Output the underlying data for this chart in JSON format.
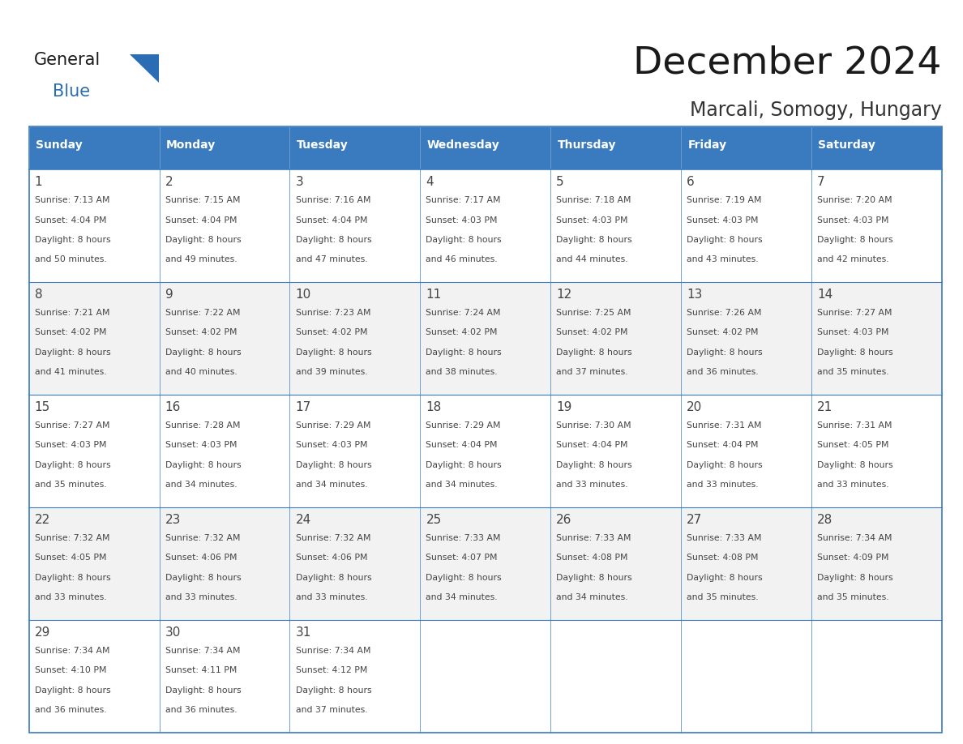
{
  "title": "December 2024",
  "subtitle": "Marcali, Somogy, Hungary",
  "days_of_week": [
    "Sunday",
    "Monday",
    "Tuesday",
    "Wednesday",
    "Thursday",
    "Friday",
    "Saturday"
  ],
  "header_bg": "#3a7abf",
  "header_text": "#ffffff",
  "row_bg_light": "#f2f2f2",
  "row_bg_white": "#ffffff",
  "cell_text": "#444444",
  "border_color": "#3a7abf",
  "title_color": "#1a1a1a",
  "subtitle_color": "#333333",
  "logo_text_color": "#1a1a1a",
  "logo_blue_color": "#2a6db5",
  "logo_triangle_color": "#2a6db5",
  "days": [
    {
      "day": 1,
      "col": 0,
      "row": 0,
      "sunrise": "7:13 AM",
      "sunset": "4:04 PM",
      "daylight_h": "8 hours",
      "daylight_m": "and 50 minutes."
    },
    {
      "day": 2,
      "col": 1,
      "row": 0,
      "sunrise": "7:15 AM",
      "sunset": "4:04 PM",
      "daylight_h": "8 hours",
      "daylight_m": "and 49 minutes."
    },
    {
      "day": 3,
      "col": 2,
      "row": 0,
      "sunrise": "7:16 AM",
      "sunset": "4:04 PM",
      "daylight_h": "8 hours",
      "daylight_m": "and 47 minutes."
    },
    {
      "day": 4,
      "col": 3,
      "row": 0,
      "sunrise": "7:17 AM",
      "sunset": "4:03 PM",
      "daylight_h": "8 hours",
      "daylight_m": "and 46 minutes."
    },
    {
      "day": 5,
      "col": 4,
      "row": 0,
      "sunrise": "7:18 AM",
      "sunset": "4:03 PM",
      "daylight_h": "8 hours",
      "daylight_m": "and 44 minutes."
    },
    {
      "day": 6,
      "col": 5,
      "row": 0,
      "sunrise": "7:19 AM",
      "sunset": "4:03 PM",
      "daylight_h": "8 hours",
      "daylight_m": "and 43 minutes."
    },
    {
      "day": 7,
      "col": 6,
      "row": 0,
      "sunrise": "7:20 AM",
      "sunset": "4:03 PM",
      "daylight_h": "8 hours",
      "daylight_m": "and 42 minutes."
    },
    {
      "day": 8,
      "col": 0,
      "row": 1,
      "sunrise": "7:21 AM",
      "sunset": "4:02 PM",
      "daylight_h": "8 hours",
      "daylight_m": "and 41 minutes."
    },
    {
      "day": 9,
      "col": 1,
      "row": 1,
      "sunrise": "7:22 AM",
      "sunset": "4:02 PM",
      "daylight_h": "8 hours",
      "daylight_m": "and 40 minutes."
    },
    {
      "day": 10,
      "col": 2,
      "row": 1,
      "sunrise": "7:23 AM",
      "sunset": "4:02 PM",
      "daylight_h": "8 hours",
      "daylight_m": "and 39 minutes."
    },
    {
      "day": 11,
      "col": 3,
      "row": 1,
      "sunrise": "7:24 AM",
      "sunset": "4:02 PM",
      "daylight_h": "8 hours",
      "daylight_m": "and 38 minutes."
    },
    {
      "day": 12,
      "col": 4,
      "row": 1,
      "sunrise": "7:25 AM",
      "sunset": "4:02 PM",
      "daylight_h": "8 hours",
      "daylight_m": "and 37 minutes."
    },
    {
      "day": 13,
      "col": 5,
      "row": 1,
      "sunrise": "7:26 AM",
      "sunset": "4:02 PM",
      "daylight_h": "8 hours",
      "daylight_m": "and 36 minutes."
    },
    {
      "day": 14,
      "col": 6,
      "row": 1,
      "sunrise": "7:27 AM",
      "sunset": "4:03 PM",
      "daylight_h": "8 hours",
      "daylight_m": "and 35 minutes."
    },
    {
      "day": 15,
      "col": 0,
      "row": 2,
      "sunrise": "7:27 AM",
      "sunset": "4:03 PM",
      "daylight_h": "8 hours",
      "daylight_m": "and 35 minutes."
    },
    {
      "day": 16,
      "col": 1,
      "row": 2,
      "sunrise": "7:28 AM",
      "sunset": "4:03 PM",
      "daylight_h": "8 hours",
      "daylight_m": "and 34 minutes."
    },
    {
      "day": 17,
      "col": 2,
      "row": 2,
      "sunrise": "7:29 AM",
      "sunset": "4:03 PM",
      "daylight_h": "8 hours",
      "daylight_m": "and 34 minutes."
    },
    {
      "day": 18,
      "col": 3,
      "row": 2,
      "sunrise": "7:29 AM",
      "sunset": "4:04 PM",
      "daylight_h": "8 hours",
      "daylight_m": "and 34 minutes."
    },
    {
      "day": 19,
      "col": 4,
      "row": 2,
      "sunrise": "7:30 AM",
      "sunset": "4:04 PM",
      "daylight_h": "8 hours",
      "daylight_m": "and 33 minutes."
    },
    {
      "day": 20,
      "col": 5,
      "row": 2,
      "sunrise": "7:31 AM",
      "sunset": "4:04 PM",
      "daylight_h": "8 hours",
      "daylight_m": "and 33 minutes."
    },
    {
      "day": 21,
      "col": 6,
      "row": 2,
      "sunrise": "7:31 AM",
      "sunset": "4:05 PM",
      "daylight_h": "8 hours",
      "daylight_m": "and 33 minutes."
    },
    {
      "day": 22,
      "col": 0,
      "row": 3,
      "sunrise": "7:32 AM",
      "sunset": "4:05 PM",
      "daylight_h": "8 hours",
      "daylight_m": "and 33 minutes."
    },
    {
      "day": 23,
      "col": 1,
      "row": 3,
      "sunrise": "7:32 AM",
      "sunset": "4:06 PM",
      "daylight_h": "8 hours",
      "daylight_m": "and 33 minutes."
    },
    {
      "day": 24,
      "col": 2,
      "row": 3,
      "sunrise": "7:32 AM",
      "sunset": "4:06 PM",
      "daylight_h": "8 hours",
      "daylight_m": "and 33 minutes."
    },
    {
      "day": 25,
      "col": 3,
      "row": 3,
      "sunrise": "7:33 AM",
      "sunset": "4:07 PM",
      "daylight_h": "8 hours",
      "daylight_m": "and 34 minutes."
    },
    {
      "day": 26,
      "col": 4,
      "row": 3,
      "sunrise": "7:33 AM",
      "sunset": "4:08 PM",
      "daylight_h": "8 hours",
      "daylight_m": "and 34 minutes."
    },
    {
      "day": 27,
      "col": 5,
      "row": 3,
      "sunrise": "7:33 AM",
      "sunset": "4:08 PM",
      "daylight_h": "8 hours",
      "daylight_m": "and 35 minutes."
    },
    {
      "day": 28,
      "col": 6,
      "row": 3,
      "sunrise": "7:34 AM",
      "sunset": "4:09 PM",
      "daylight_h": "8 hours",
      "daylight_m": "and 35 minutes."
    },
    {
      "day": 29,
      "col": 0,
      "row": 4,
      "sunrise": "7:34 AM",
      "sunset": "4:10 PM",
      "daylight_h": "8 hours",
      "daylight_m": "and 36 minutes."
    },
    {
      "day": 30,
      "col": 1,
      "row": 4,
      "sunrise": "7:34 AM",
      "sunset": "4:11 PM",
      "daylight_h": "8 hours",
      "daylight_m": "and 36 minutes."
    },
    {
      "day": 31,
      "col": 2,
      "row": 4,
      "sunrise": "7:34 AM",
      "sunset": "4:12 PM",
      "daylight_h": "8 hours",
      "daylight_m": "and 37 minutes."
    }
  ]
}
